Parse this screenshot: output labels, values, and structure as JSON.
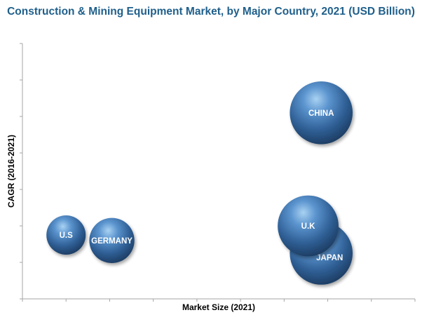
{
  "chart_data": {
    "type": "scatter",
    "title": "Construction & Mining Equipment Market, by Major Country, 2021 (USD Billion)",
    "xlabel": "Market Size (2021)",
    "ylabel": "CAGR (2016-2021)",
    "xlim": [
      0,
      18
    ],
    "ylim": [
      0,
      7
    ],
    "grid": false,
    "legend": "none",
    "points": [
      {
        "label": "U.S",
        "x": 2.0,
        "y": 1.75,
        "size": 1.0
      },
      {
        "label": "GERMANY",
        "x": 4.1,
        "y": 1.6,
        "size": 1.15
      },
      {
        "label": "U.K",
        "x": 13.1,
        "y": 2.0,
        "size": 1.55
      },
      {
        "label": "JAPAN",
        "x": 13.7,
        "y": 1.25,
        "size": 1.6
      },
      {
        "label": "CHINA",
        "x": 13.7,
        "y": 5.1,
        "size": 1.6
      }
    ],
    "colors": {
      "bubble_dark": "#1e3f66",
      "bubble_mid": "#3f7cb8",
      "bubble_light": "#a9d2f2",
      "axis": "#a6a6a6",
      "title": "#1f5f8b"
    }
  }
}
